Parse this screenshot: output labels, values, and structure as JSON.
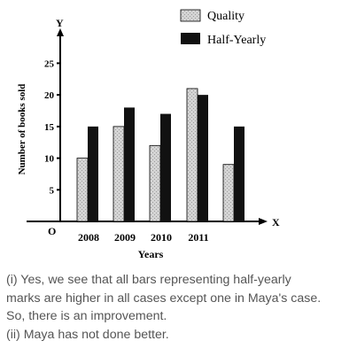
{
  "chart_data": {
    "type": "bar",
    "categories": [
      "2008",
      "2009",
      "2010",
      "2011"
    ],
    "series": [
      {
        "name": "Quality",
        "values": [
          10,
          15,
          12,
          21
        ]
      },
      {
        "name": "Half-Yearly",
        "values": [
          15,
          18,
          17,
          20
        ]
      }
    ],
    "extra_bar": {
      "series": "Quality",
      "value": 9
    },
    "extra_bar_hy": {
      "series": "Half-Yearly",
      "value": 15
    },
    "xlabel": "Years",
    "ylabel": "Number of books sold",
    "x_axis_letter": "X",
    "y_axis_letter": "Y",
    "origin_label": "O",
    "yticks": [
      5,
      10,
      15,
      20,
      25
    ],
    "ylim": [
      0,
      28
    ],
    "legend_position": "top-right",
    "colors": {
      "quality": "#d0d0d0",
      "half_yearly": "#111111"
    }
  },
  "caption": {
    "lines": [
      "(i) Yes, we see that all bars representing half-yearly",
      "marks are higher in all cases except one in Maya's case.",
      "So, there is an improvement.",
      "(ii) Maya has not done better."
    ]
  }
}
